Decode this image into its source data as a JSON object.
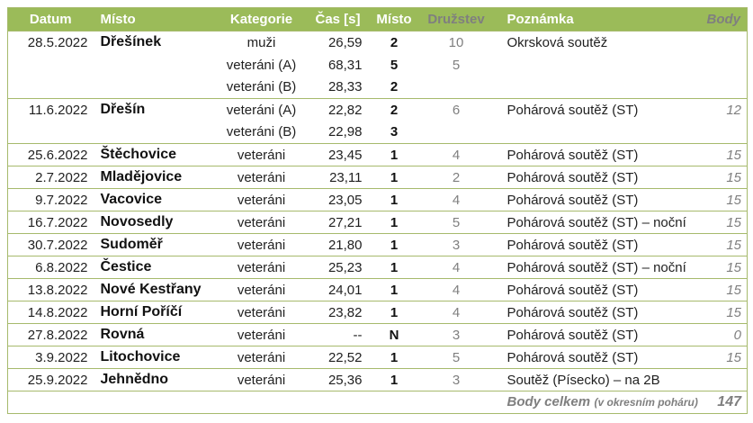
{
  "colors": {
    "header_bg": "#9bbb59",
    "header_text": "#ffffff",
    "muted_text": "#7f7f7f",
    "grid_line": "#a6ba6c",
    "body_text": "#1f1f1f",
    "page_bg": "#ffffff"
  },
  "table": {
    "columns": [
      {
        "key": "datum",
        "label": "Datum"
      },
      {
        "key": "misto",
        "label": "Místo"
      },
      {
        "key": "kategorie",
        "label": "Kategorie"
      },
      {
        "key": "cas",
        "label": "Čas [s]"
      },
      {
        "key": "umisteni",
        "label": "Místo"
      },
      {
        "key": "druzstev",
        "label": "Družstev"
      },
      {
        "key": "poznamka",
        "label": "Poznámka"
      },
      {
        "key": "body",
        "label": "Body"
      }
    ],
    "rows": [
      {
        "datum": "28.5.2022",
        "misto": "Dřešínek",
        "kategorie": "muži",
        "cas": "26,59",
        "umisteni": "2",
        "druzstev": "10",
        "poznamka": "Okrsková soutěž",
        "body": "",
        "group_start": true
      },
      {
        "datum": "",
        "misto": "",
        "kategorie": "veteráni (A)",
        "cas": "68,31",
        "umisteni": "5",
        "druzstev": "5",
        "poznamka": "",
        "body": "",
        "group_start": false
      },
      {
        "datum": "",
        "misto": "",
        "kategorie": "veteráni (B)",
        "cas": "28,33",
        "umisteni": "2",
        "druzstev": "",
        "poznamka": "",
        "body": "",
        "group_start": false
      },
      {
        "datum": "11.6.2022",
        "misto": "Dřešín",
        "kategorie": "veteráni (A)",
        "cas": "22,82",
        "umisteni": "2",
        "druzstev": "6",
        "poznamka": "Pohárová soutěž (ST)",
        "body": "12",
        "group_start": true
      },
      {
        "datum": "",
        "misto": "",
        "kategorie": "veteráni (B)",
        "cas": "22,98",
        "umisteni": "3",
        "druzstev": "",
        "poznamka": "",
        "body": "",
        "group_start": false
      },
      {
        "datum": "25.6.2022",
        "misto": "Štěchovice",
        "kategorie": "veteráni",
        "cas": "23,45",
        "umisteni": "1",
        "druzstev": "4",
        "poznamka": "Pohárová soutěž (ST)",
        "body": "15",
        "group_start": true
      },
      {
        "datum": "2.7.2022",
        "misto": "Mladějovice",
        "kategorie": "veteráni",
        "cas": "23,11",
        "umisteni": "1",
        "druzstev": "2",
        "poznamka": "Pohárová soutěž (ST)",
        "body": "15",
        "group_start": true
      },
      {
        "datum": "9.7.2022",
        "misto": "Vacovice",
        "kategorie": "veteráni",
        "cas": "23,05",
        "umisteni": "1",
        "druzstev": "4",
        "poznamka": "Pohárová soutěž (ST)",
        "body": "15",
        "group_start": true
      },
      {
        "datum": "16.7.2022",
        "misto": "Novosedly",
        "kategorie": "veteráni",
        "cas": "27,21",
        "umisteni": "1",
        "druzstev": "5",
        "poznamka": "Pohárová soutěž (ST) – noční",
        "body": "15",
        "group_start": true
      },
      {
        "datum": "30.7.2022",
        "misto": "Sudoměř",
        "kategorie": "veteráni",
        "cas": "21,80",
        "umisteni": "1",
        "druzstev": "3",
        "poznamka": "Pohárová soutěž (ST)",
        "body": "15",
        "group_start": true
      },
      {
        "datum": "6.8.2022",
        "misto": "Čestice",
        "kategorie": "veteráni",
        "cas": "25,23",
        "umisteni": "1",
        "druzstev": "4",
        "poznamka": "Pohárová soutěž (ST) – noční",
        "body": "15",
        "group_start": true
      },
      {
        "datum": "13.8.2022",
        "misto": "Nové Kestřany",
        "kategorie": "veteráni",
        "cas": "24,01",
        "umisteni": "1",
        "druzstev": "4",
        "poznamka": "Pohárová soutěž (ST)",
        "body": "15",
        "group_start": true
      },
      {
        "datum": "14.8.2022",
        "misto": "Horní Poříčí",
        "kategorie": "veteráni",
        "cas": "23,82",
        "umisteni": "1",
        "druzstev": "4",
        "poznamka": "Pohárová soutěž (ST)",
        "body": "15",
        "group_start": true
      },
      {
        "datum": "27.8.2022",
        "misto": "Rovná",
        "kategorie": "veteráni",
        "cas": "--",
        "umisteni": "N",
        "druzstev": "3",
        "poznamka": "Pohárová soutěž (ST)",
        "body": "0",
        "group_start": true
      },
      {
        "datum": "3.9.2022",
        "misto": "Litochovice",
        "kategorie": "veteráni",
        "cas": "22,52",
        "umisteni": "1",
        "druzstev": "5",
        "poznamka": "Pohárová soutěž (ST)",
        "body": "15",
        "group_start": true
      },
      {
        "datum": "25.9.2022",
        "misto": "Jehnědno",
        "kategorie": "veteráni",
        "cas": "25,36",
        "umisteni": "1",
        "druzstev": "3",
        "poznamka": "Soutěž (Písecko) – na 2B",
        "body": "",
        "group_start": true
      }
    ],
    "footer": {
      "label": "Body celkem",
      "sublabel": "(v okresním poháru)",
      "value": "147"
    }
  }
}
